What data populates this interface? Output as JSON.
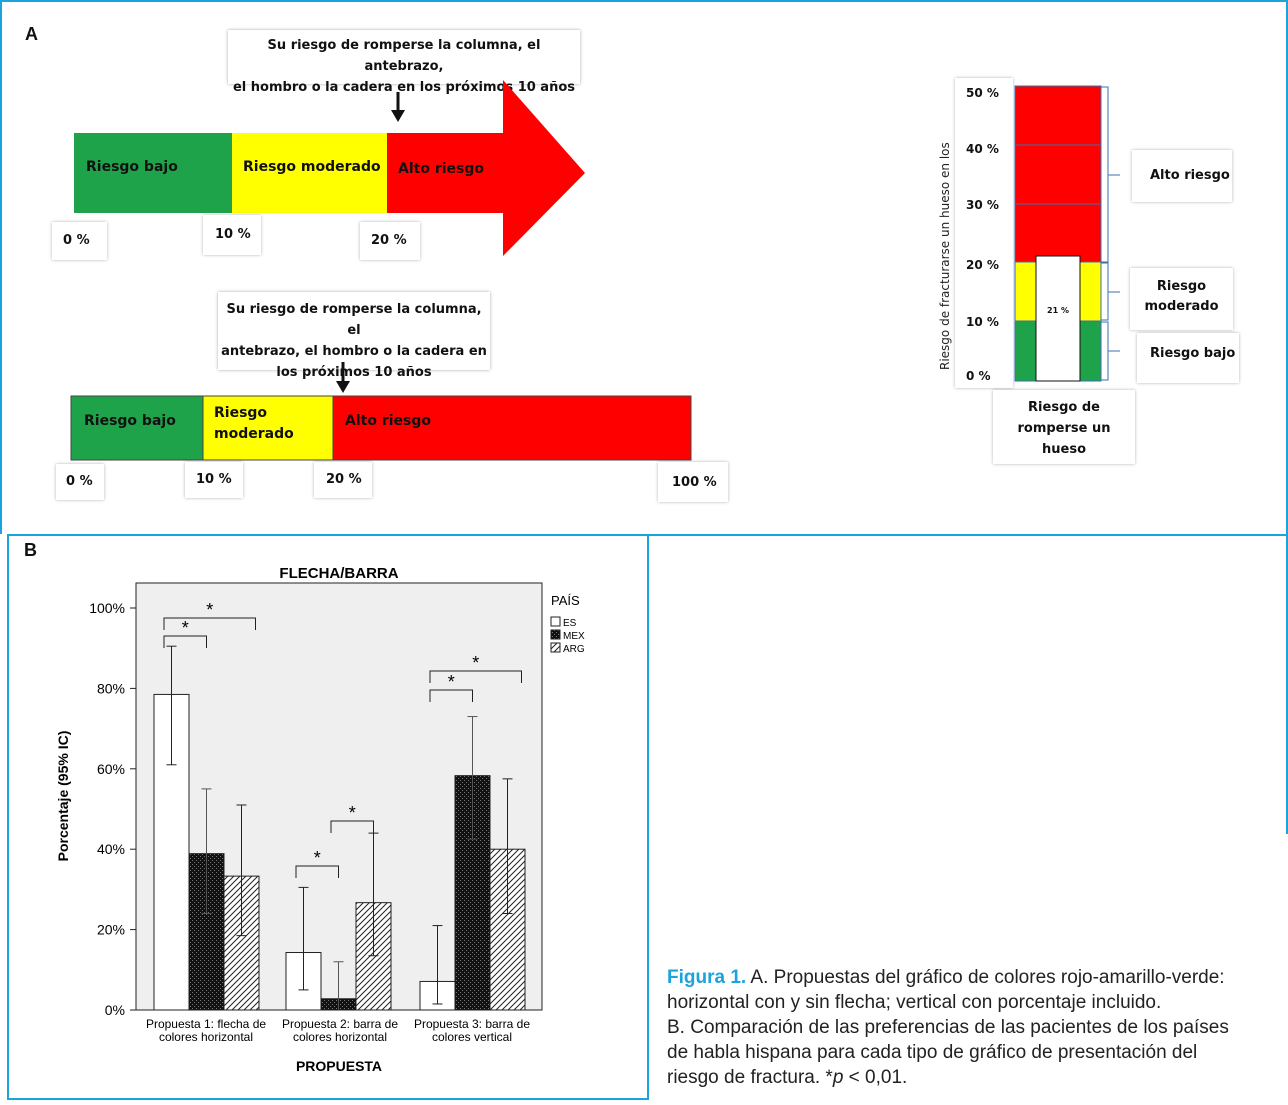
{
  "panel_a": {
    "letter": "A",
    "arrow_chart": {
      "caption": [
        "Su riesgo de romperse la columna, el antebrazo,",
        "el hombro o la cadera en los próximos 10 años"
      ],
      "segments": [
        {
          "label": "Riesgo bajo",
          "color": "#1fa34a"
        },
        {
          "label": "Riesgo moderado",
          "color": "#ffff00"
        },
        {
          "label": "Alto riesgo",
          "color": "#ff0000"
        }
      ],
      "ticks": [
        "0 %",
        "10 %",
        "20 %"
      ]
    },
    "bar_chart": {
      "caption": [
        "Su riesgo de romperse la columna, el",
        "antebrazo, el hombro o la cadera en",
        "los próximos 10 años"
      ],
      "segments": [
        {
          "label": "Riesgo bajo",
          "color": "#1fa34a"
        },
        {
          "label": [
            "Riesgo",
            "moderado"
          ],
          "color": "#ffff00"
        },
        {
          "label": "Alto riesgo",
          "color": "#ff0000"
        }
      ],
      "ticks": [
        "0 %",
        "10 %",
        "20 %",
        "100 %"
      ]
    },
    "vertical_chart": {
      "ylabel": "Riesgo de fracturarse un hueso en los",
      "ticks": [
        "50 %",
        "40 %",
        "30 %",
        "20 %",
        "10 %",
        "0 %"
      ],
      "value_label": "21 %",
      "brackets": [
        {
          "label": "Alto riesgo"
        },
        {
          "label": [
            "Riesgo",
            "moderado"
          ]
        },
        {
          "label": "Riesgo bajo"
        }
      ],
      "xlabel": [
        "Riesgo de",
        "romperse un",
        "hueso"
      ]
    }
  },
  "chart_data": {
    "type": "bar",
    "title": "FLECHA/BARRA",
    "xlabel": "PROPUESTA",
    "ylabel": "Porcentaje (95% IC)",
    "ylim": [
      0,
      100
    ],
    "yticks": [
      "0%",
      "20%",
      "40%",
      "60%",
      "80%",
      "100%"
    ],
    "categories": [
      [
        "Propuesta 1: flecha de",
        "colores horizontal"
      ],
      [
        "Propuesta 2: barra de",
        "colores horizontal"
      ],
      [
        "Propuesta 3: barra de",
        "colores vertical"
      ]
    ],
    "legend_title": "PAÍS",
    "legend_position": "right",
    "series": [
      {
        "name": "ES",
        "values": [
          78.5,
          14.3,
          7.1
        ],
        "ci_low": [
          61,
          5,
          1.5
        ],
        "ci_high": [
          90.5,
          30.5,
          21
        ]
      },
      {
        "name": "MEX",
        "values": [
          38.9,
          2.8,
          58.3
        ],
        "ci_low": [
          24,
          0,
          42.5
        ],
        "ci_high": [
          55,
          12,
          73
        ]
      },
      {
        "name": "ARG",
        "values": [
          33.3,
          26.7,
          40
        ],
        "ci_low": [
          18.5,
          13.5,
          24
        ],
        "ci_high": [
          51,
          44,
          57.5
        ]
      }
    ],
    "significance_marker": "*",
    "significance": [
      {
        "category": 0,
        "from": 0,
        "to": 1,
        "level": 1
      },
      {
        "category": 0,
        "from": 0,
        "to": 2,
        "level": 2
      },
      {
        "category": 1,
        "from": 0,
        "to": 1,
        "level": 1
      },
      {
        "category": 1,
        "from": 1,
        "to": 2,
        "level": 1
      },
      {
        "category": 2,
        "from": 0,
        "to": 1,
        "level": 1
      },
      {
        "category": 2,
        "from": 0,
        "to": 2,
        "level": 2
      }
    ]
  },
  "panel_b": {
    "letter": "B"
  },
  "caption": {
    "figure_label": "Figura 1.",
    "line1": " A. Propuestas del gráfico de colores rojo-amarillo-verde:",
    "line2": "horizontal con y sin flecha; vertical con porcentaje incluido.",
    "line3": "B. Comparación de las preferencias de las pacientes de los países",
    "line4": "de habla hispana para cada tipo de gráfico de presentación del",
    "line5_prefix": "riesgo de fractura. *",
    "line5_p": "p",
    "line5_suffix": " < 0,01."
  },
  "colors": {
    "frame": "#1aa3dc",
    "plot_bg": "#efefef"
  }
}
